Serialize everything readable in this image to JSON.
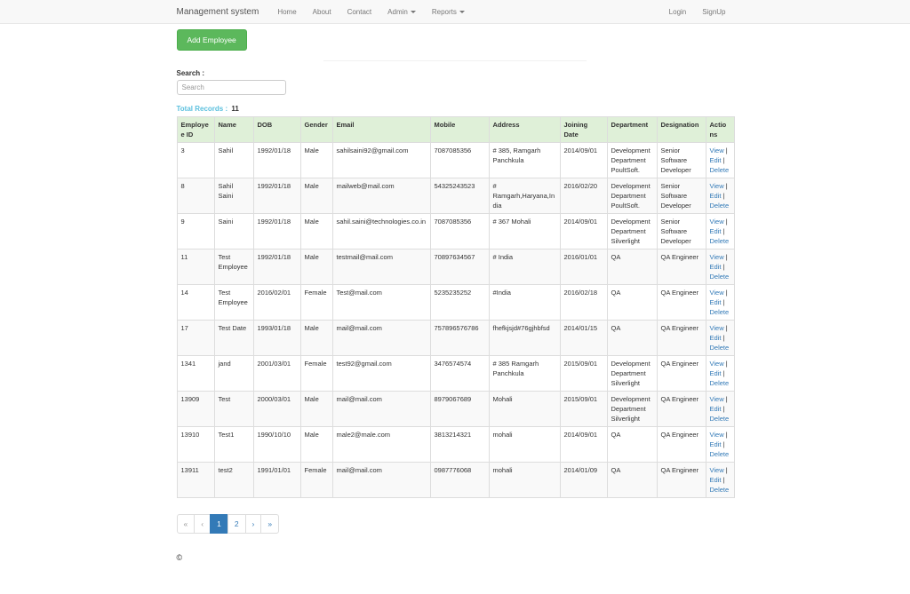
{
  "nav": {
    "brand": "Management system",
    "items": [
      {
        "label": "Home"
      },
      {
        "label": "About"
      },
      {
        "label": "Contact"
      },
      {
        "label": "Admin",
        "dropdown": true
      },
      {
        "label": "Reports",
        "dropdown": true
      }
    ],
    "right_items": [
      {
        "label": "Login"
      },
      {
        "label": "SignUp"
      }
    ]
  },
  "toolbar": {
    "add_employee_label": "Add Employee"
  },
  "search": {
    "label": "Search :",
    "placeholder": "Search"
  },
  "records": {
    "label": "Total Records :",
    "count": "11"
  },
  "table": {
    "columns": [
      "Employee ID",
      "Name",
      "DOB",
      "Gender",
      "Email",
      "Mobile",
      "Address",
      "Joining Date",
      "Department",
      "Designation",
      "Actions"
    ],
    "actions": {
      "view": "View",
      "edit": "Edit",
      "delete": "Delete",
      "separator": "|"
    },
    "rows": [
      {
        "id": "3",
        "name": "Sahil",
        "dob": "1992/01/18",
        "gender": "Male",
        "email": "sahilsaini92@gmail.com",
        "mobile": "7087085356",
        "address": "# 385, Ramgarh Panchkula",
        "joining_date": "2014/09/01",
        "department": "Development Department PoultSoft.",
        "designation": "Senior Software Developer"
      },
      {
        "id": "8",
        "name": "Sahil Saini",
        "dob": "1992/01/18",
        "gender": "Male",
        "email": "mailweb@mail.com",
        "mobile": "54325243523",
        "address": "# Ramgarh,Haryana,India",
        "joining_date": "2016/02/20",
        "department": "Development Department PoultSoft.",
        "designation": "Senior Software Developer"
      },
      {
        "id": "9",
        "name": "Saini",
        "dob": "1992/01/18",
        "gender": "Male",
        "email": "sahil.saini@technologies.co.in",
        "mobile": "7087085356",
        "address": "# 367 Mohali",
        "joining_date": "2014/09/01",
        "department": "Development Department Silverlight",
        "designation": "Senior Software Developer"
      },
      {
        "id": "11",
        "name": "Test Employee",
        "dob": "1992/01/18",
        "gender": "Male",
        "email": "testmail@mail.com",
        "mobile": "70897634567",
        "address": "# India",
        "joining_date": "2016/01/01",
        "department": "QA",
        "designation": "QA Engineer"
      },
      {
        "id": "14",
        "name": "Test Employee",
        "dob": "2016/02/01",
        "gender": "Female",
        "email": "Test@mail.com",
        "mobile": "5235235252",
        "address": "#India",
        "joining_date": "2016/02/18",
        "department": "QA",
        "designation": "QA Engineer"
      },
      {
        "id": "17",
        "name": "Test Date",
        "dob": "1993/01/18",
        "gender": "Male",
        "email": "mail@mail.com",
        "mobile": "757896576786",
        "address": "fhefkjsjd#76gjhbfsd",
        "joining_date": "2014/01/15",
        "department": "QA",
        "designation": "QA Engineer"
      },
      {
        "id": "1341",
        "name": "jand",
        "dob": "2001/03/01",
        "gender": "Female",
        "email": "test92@gmail.com",
        "mobile": "3476574574",
        "address": "# 385 Ramgarh Panchkula",
        "joining_date": "2015/09/01",
        "department": "Development Department Silverlight",
        "designation": "QA Engineer"
      },
      {
        "id": "13909",
        "name": "Test",
        "dob": "2000/03/01",
        "gender": "Male",
        "email": "mail@mail.com",
        "mobile": "8979067689",
        "address": "Mohali",
        "joining_date": "2015/09/01",
        "department": "Development Department Silverlight",
        "designation": "QA Engineer"
      },
      {
        "id": "13910",
        "name": "Test1",
        "dob": "1990/10/10",
        "gender": "Male",
        "email": "male2@male.com",
        "mobile": "3813214321",
        "address": "mohali",
        "joining_date": "2014/09/01",
        "department": "QA",
        "designation": "QA Engineer"
      },
      {
        "id": "13911",
        "name": "test2",
        "dob": "1991/01/01",
        "gender": "Female",
        "email": "mail@mail.com",
        "mobile": "0987776068",
        "address": "mohali",
        "joining_date": "2014/01/09",
        "department": "QA",
        "designation": "QA Engineer"
      }
    ]
  },
  "pagination": {
    "items": [
      {
        "label": "«",
        "name": "page-first",
        "state": "disabled"
      },
      {
        "label": "‹",
        "name": "page-prev",
        "state": "disabled"
      },
      {
        "label": "1",
        "name": "page-1",
        "state": "active"
      },
      {
        "label": "2",
        "name": "page-2",
        "state": "normal"
      },
      {
        "label": "›",
        "name": "page-next",
        "state": "normal"
      },
      {
        "label": "»",
        "name": "page-last",
        "state": "normal"
      }
    ]
  },
  "footer": {
    "copyright": "©"
  },
  "colors": {
    "accent_green": "#5cb85c",
    "accent_green_border": "#4cae4c",
    "link_blue": "#337ab7",
    "info_blue": "#5bc0de",
    "table_header_bg": "#dff0d8",
    "navbar_bg": "#f8f8f8",
    "navbar_border": "#e7e7e7",
    "table_border": "#ddd"
  }
}
